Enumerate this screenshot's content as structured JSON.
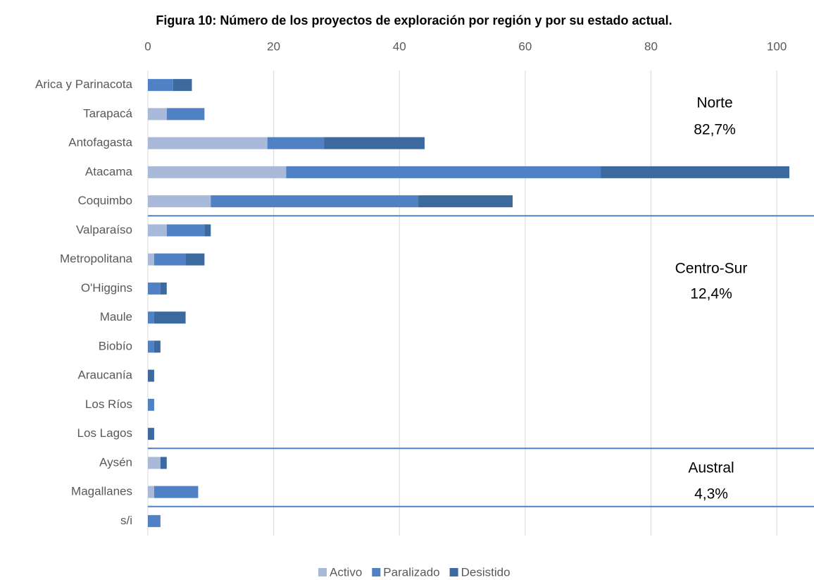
{
  "chart_data": {
    "type": "stacked_barh",
    "title": "Figura 10: Número de los proyectos de exploración por región y por su estado actual.",
    "categories": [
      "Arica y Parinacota",
      "Tarapacá",
      "Antofagasta",
      "Atacama",
      "Coquimbo",
      "Valparaíso",
      "Metropolitana",
      "O'Higgins",
      "Maule",
      "Biobío",
      "Araucanía",
      "Los Ríos",
      "Los Lagos",
      "Aysén",
      "Magallanes",
      "s/i"
    ],
    "series": [
      {
        "name": "Activo",
        "color": "#a9b9da",
        "values": [
          0,
          3,
          19,
          22,
          10,
          3,
          1,
          0,
          0,
          0,
          0,
          0,
          0,
          2,
          1,
          0
        ]
      },
      {
        "name": "Paralizado",
        "color": "#4f81c4",
        "values": [
          4,
          6,
          9,
          50,
          33,
          6,
          5,
          2,
          1,
          1,
          0,
          1,
          0,
          0,
          7,
          2
        ]
      },
      {
        "name": "Desistido",
        "color": "#3d6a9e",
        "values": [
          3,
          0,
          16,
          30,
          15,
          1,
          3,
          1,
          5,
          1,
          1,
          0,
          1,
          1,
          0,
          0
        ]
      }
    ],
    "xlim": [
      0,
      102
    ],
    "xticks": [
      0,
      20,
      40,
      60,
      80,
      100
    ],
    "grid": true,
    "legend": "bottom",
    "annotations": [
      [
        "Norte",
        "82,7%"
      ],
      [
        "Centro-Sur",
        "12,4%"
      ],
      [
        "Austral",
        "4,3%"
      ]
    ]
  }
}
